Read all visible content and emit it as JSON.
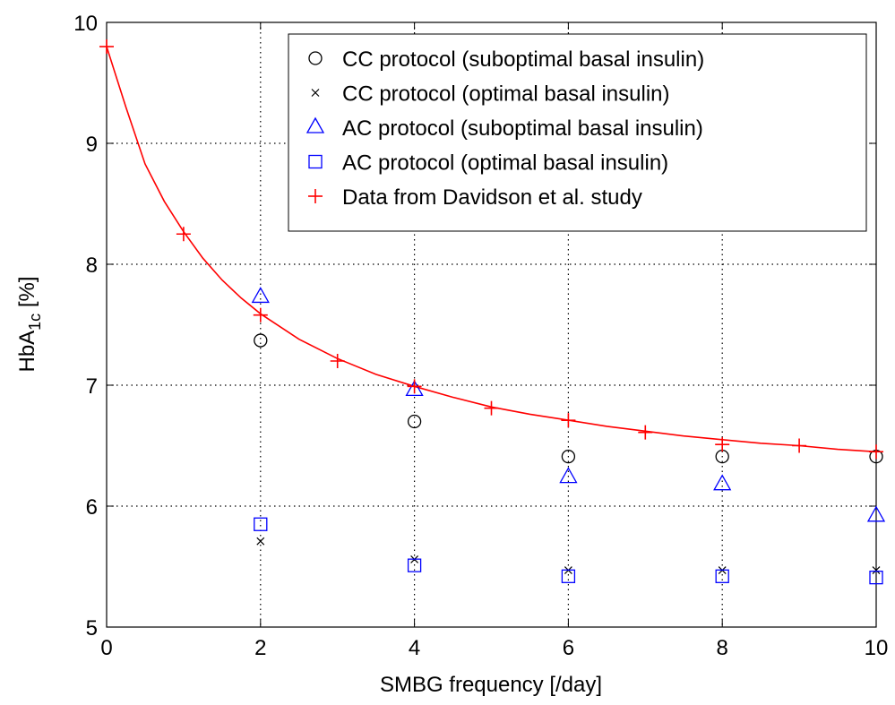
{
  "chart_data": {
    "type": "scatter",
    "xlabel": "SMBG frequency [/day]",
    "ylabel": {
      "prefix": "HbA",
      "subscript": "1c",
      "suffix": " [%]"
    },
    "xlim": [
      0,
      10
    ],
    "ylim": [
      5,
      10
    ],
    "x_ticks": [
      0,
      2,
      4,
      6,
      8,
      10
    ],
    "y_ticks": [
      5,
      6,
      7,
      8,
      9,
      10
    ],
    "grid": true,
    "grid_style": "dotted",
    "legend_position": "top-right",
    "series": [
      {
        "name": "CC protocol (suboptimal basal insulin)",
        "marker": "circle",
        "color": "#000000",
        "x": [
          2,
          4,
          6,
          8,
          10
        ],
        "y": [
          7.37,
          6.7,
          6.41,
          6.41,
          6.41
        ]
      },
      {
        "name": "CC protocol (optimal basal insulin)",
        "marker": "x",
        "color": "#000000",
        "x": [
          2,
          4,
          6,
          8,
          10
        ],
        "y": [
          5.71,
          5.56,
          5.47,
          5.47,
          5.47
        ]
      },
      {
        "name": "AC protocol (suboptimal basal insulin)",
        "marker": "triangle",
        "color": "#0000ff",
        "x": [
          2,
          4,
          6,
          8,
          10
        ],
        "y": [
          7.73,
          6.96,
          6.24,
          6.18,
          5.92
        ]
      },
      {
        "name": "AC protocol (optimal basal insulin)",
        "marker": "square",
        "color": "#0000ff",
        "x": [
          2,
          4,
          6,
          8,
          10
        ],
        "y": [
          5.85,
          5.51,
          5.42,
          5.42,
          5.41
        ]
      },
      {
        "name": "Data from Davidson et al. study",
        "marker": "plus",
        "color": "#ff0000",
        "line": true,
        "x": [
          0,
          1,
          2,
          3,
          4,
          5,
          6,
          7,
          8,
          9,
          10
        ],
        "y": [
          9.8,
          8.25,
          7.58,
          7.2,
          6.99,
          6.81,
          6.71,
          6.61,
          6.51,
          6.5,
          6.45
        ]
      }
    ],
    "fit_curve": {
      "color": "#ff0000",
      "x": [
        0,
        0.25,
        0.5,
        0.75,
        1,
        1.25,
        1.5,
        1.75,
        2,
        2.5,
        3,
        3.5,
        4,
        4.5,
        5,
        5.5,
        6,
        6.5,
        7,
        7.5,
        8,
        8.5,
        9,
        9.5,
        10
      ],
      "y": [
        9.8,
        9.3,
        8.83,
        8.52,
        8.27,
        8.05,
        7.87,
        7.72,
        7.59,
        7.38,
        7.22,
        7.09,
        6.99,
        6.9,
        6.82,
        6.76,
        6.71,
        6.66,
        6.62,
        6.58,
        6.55,
        6.52,
        6.5,
        6.47,
        6.45
      ]
    }
  }
}
